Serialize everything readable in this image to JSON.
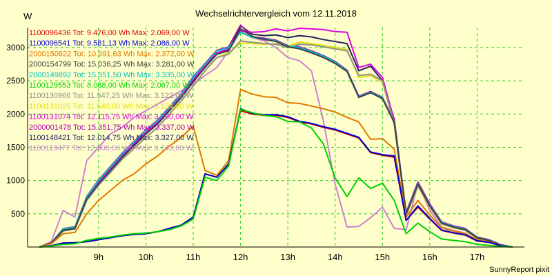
{
  "chart_data": {
    "type": "line",
    "title": "Wechselrichtervergleich vom 12.11.2018",
    "ylabel": "W",
    "footer": "SunnyReport pixit",
    "ylim": [
      0,
      3300
    ],
    "xlim": [
      7.5,
      18.0
    ],
    "grid": true,
    "legend_placement": "top-left",
    "yticks": [
      500,
      1000,
      1500,
      2000,
      2500,
      3000
    ],
    "xticks": [
      {
        "value": 9,
        "label": "9h"
      },
      {
        "value": 10,
        "label": "10h"
      },
      {
        "value": 11,
        "label": "11h"
      },
      {
        "value": 12,
        "label": "12h"
      },
      {
        "value": 13,
        "label": "13h"
      },
      {
        "value": 14,
        "label": "14h"
      },
      {
        "value": 15,
        "label": "15h"
      },
      {
        "value": 16,
        "label": "16h"
      },
      {
        "value": 17,
        "label": "17h"
      }
    ],
    "x": [
      7.75,
      8.0,
      8.25,
      8.5,
      8.75,
      9.0,
      9.25,
      9.5,
      9.75,
      10.0,
      10.25,
      10.5,
      10.75,
      11.0,
      11.25,
      11.5,
      11.75,
      12.0,
      12.25,
      12.5,
      12.75,
      13.0,
      13.25,
      13.5,
      13.75,
      14.0,
      14.25,
      14.5,
      14.75,
      15.0,
      15.25,
      15.5,
      15.75,
      16.0,
      16.25,
      16.5,
      16.75,
      17.0,
      17.25,
      17.5,
      17.75
    ],
    "series": [
      {
        "name": "1100096436",
        "legend": "1100096436 Tot: 9.476,00 Wh Max: 2.069,00 W",
        "color": "#e00000",
        "values": [
          0,
          20,
          60,
          65,
          80,
          110,
          140,
          170,
          190,
          200,
          230,
          280,
          330,
          450,
          1100,
          1050,
          1250,
          2050,
          2000,
          1980,
          1980,
          1950,
          1880,
          1850,
          1800,
          1760,
          1700,
          1640,
          1420,
          1380,
          1350,
          400,
          600,
          420,
          250,
          210,
          180,
          90,
          70,
          20,
          0
        ]
      },
      {
        "name": "1100096541",
        "legend": "1100096541 Tot: 9.581,13 Wh Max: 2.086,00 W",
        "color": "#0000d0",
        "values": [
          0,
          20,
          60,
          65,
          80,
          110,
          140,
          170,
          190,
          200,
          230,
          280,
          330,
          450,
          1100,
          1050,
          1250,
          2080,
          2010,
          1990,
          1990,
          1960,
          1890,
          1860,
          1810,
          1770,
          1710,
          1650,
          1430,
          1390,
          1370,
          400,
          620,
          430,
          255,
          215,
          185,
          95,
          72,
          20,
          0
        ]
      },
      {
        "name": "2000150622",
        "legend": "2000150622 Tot: 10.991,63 Wh Max: 2.372,00 W",
        "color": "#e07800",
        "values": [
          0,
          50,
          200,
          220,
          500,
          700,
          850,
          1000,
          1100,
          1250,
          1370,
          1520,
          1650,
          1820,
          1150,
          1080,
          1300,
          2370,
          2300,
          2260,
          2250,
          2170,
          2160,
          2120,
          2080,
          2030,
          1950,
          1880,
          1620,
          1630,
          1470,
          450,
          700,
          480,
          290,
          240,
          200,
          110,
          80,
          25,
          0
        ]
      },
      {
        "name": "2000154799",
        "legend": "2000154799 Tot: 15.036,25 Wh Max: 3.281,00 W",
        "color": "#404040",
        "values": [
          0,
          60,
          250,
          280,
          720,
          950,
          1150,
          1350,
          1520,
          1700,
          1850,
          2050,
          2250,
          2480,
          2700,
          2900,
          2950,
          3280,
          3170,
          3120,
          3090,
          3010,
          2980,
          2920,
          2850,
          2760,
          2640,
          2250,
          2320,
          2230,
          1870,
          500,
          950,
          620,
          360,
          300,
          260,
          140,
          100,
          30,
          0
        ]
      },
      {
        "name": "2000149892",
        "legend": "2000149892 Tot: 15.351,50 Wh Max: 3.335,00 W",
        "color": "#00c0c0",
        "values": [
          0,
          60,
          270,
          300,
          750,
          1000,
          1200,
          1400,
          1580,
          1750,
          1900,
          2100,
          2300,
          2550,
          2750,
          2950,
          3000,
          3230,
          3150,
          3130,
          3100,
          3020,
          3000,
          2940,
          2870,
          2780,
          2650,
          2260,
          2330,
          2240,
          1880,
          510,
          960,
          630,
          370,
          310,
          270,
          145,
          105,
          32,
          0
        ]
      },
      {
        "name": "1100129553",
        "legend": "1100129553 Tot: 8.088,00 Wh Max: 2.067,00 W",
        "color": "#00d000",
        "values": [
          0,
          15,
          40,
          50,
          100,
          130,
          150,
          180,
          200,
          210,
          230,
          260,
          320,
          420,
          1050,
          1000,
          1220,
          2070,
          2020,
          1980,
          1960,
          1890,
          1880,
          1790,
          1550,
          1040,
          760,
          1040,
          880,
          960,
          700,
          200,
          360,
          230,
          120,
          100,
          80,
          40,
          25,
          8,
          0
        ]
      },
      {
        "name": "1100130966",
        "legend": "1100130966 Tot: 11.547,25 Wh Max: 3.122,00 W",
        "color": "#909090",
        "values": [
          0,
          55,
          240,
          270,
          700,
          930,
          1120,
          1320,
          1480,
          1650,
          1800,
          2000,
          2200,
          2420,
          2650,
          2850,
          2900,
          3100,
          3080,
          3060,
          3050,
          3000,
          3050,
          3040,
          3010,
          2980,
          2950,
          2580,
          2600,
          2500,
          1850,
          480,
          920,
          610,
          350,
          295,
          255,
          135,
          98,
          29,
          0
        ]
      },
      {
        "name": "1100131025",
        "legend": "1100131025 Tot: 11.540,00 Wh Max: 3.134,00 W",
        "color": "#e0e000",
        "values": [
          0,
          55,
          240,
          270,
          700,
          930,
          1120,
          1320,
          1480,
          1650,
          1800,
          2000,
          2200,
          2420,
          2650,
          2850,
          2920,
          3070,
          3060,
          3050,
          3060,
          3020,
          3080,
          3060,
          3030,
          3000,
          2970,
          2550,
          2580,
          2480,
          1840,
          470,
          910,
          600,
          345,
          290,
          250,
          130,
          96,
          28,
          0
        ]
      },
      {
        "name": "1100131074",
        "legend": "1100131074 Tot: 12.115,75 Wh Max: 3.290,00 W",
        "color": "#e000e0",
        "values": [
          0,
          60,
          260,
          290,
          740,
          980,
          1180,
          1380,
          1560,
          1720,
          1880,
          2080,
          2280,
          2520,
          2720,
          2920,
          2980,
          3250,
          3230,
          3240,
          3280,
          3250,
          3290,
          3280,
          3270,
          3240,
          3230,
          2700,
          2750,
          2550,
          1900,
          520,
          980,
          650,
          380,
          320,
          280,
          150,
          110,
          35,
          0
        ]
      },
      {
        "name": "2000001478",
        "legend": "2000001478 Tot: 15.351,75 Wh Max: 3.337,00 W",
        "color": "#b000b0",
        "values": [
          0,
          62,
          275,
          305,
          760,
          1010,
          1210,
          1410,
          1590,
          1760,
          1910,
          2110,
          2310,
          2560,
          2760,
          2960,
          3010,
          3337,
          3160,
          3140,
          3110,
          3030,
          3010,
          2950,
          2880,
          2790,
          2660,
          2270,
          2340,
          2250,
          1890,
          515,
          965,
          635,
          372,
          312,
          272,
          147,
          107,
          33,
          0
        ]
      },
      {
        "name": "1100148421",
        "legend": "1100148421 Tot: 12.014,75 Wh Max: 3.327,00 W",
        "color": "#202060",
        "values": [
          0,
          58,
          250,
          280,
          730,
          960,
          1160,
          1360,
          1540,
          1700,
          1860,
          2060,
          2260,
          2500,
          2700,
          2900,
          2960,
          3327,
          3200,
          3180,
          3190,
          3150,
          3180,
          3160,
          3120,
          3090,
          3060,
          2650,
          2720,
          2500,
          1920,
          510,
          970,
          640,
          375,
          315,
          275,
          148,
          108,
          34,
          0
        ]
      },
      {
        "name": "1100119477",
        "legend": "1100119477 Tot: 12.900,00 Wh Max: 3.243,00 W",
        "color": "#d080d0",
        "values": [
          0,
          80,
          550,
          450,
          1300,
          1500,
          1700,
          1800,
          1950,
          2050,
          2150,
          2250,
          2350,
          2450,
          2580,
          2700,
          2950,
          3243,
          3150,
          3100,
          3000,
          2850,
          2800,
          2650,
          1900,
          950,
          300,
          310,
          440,
          600,
          280,
          260,
          950,
          550,
          300,
          250,
          210,
          100,
          75,
          20,
          0
        ]
      }
    ]
  }
}
